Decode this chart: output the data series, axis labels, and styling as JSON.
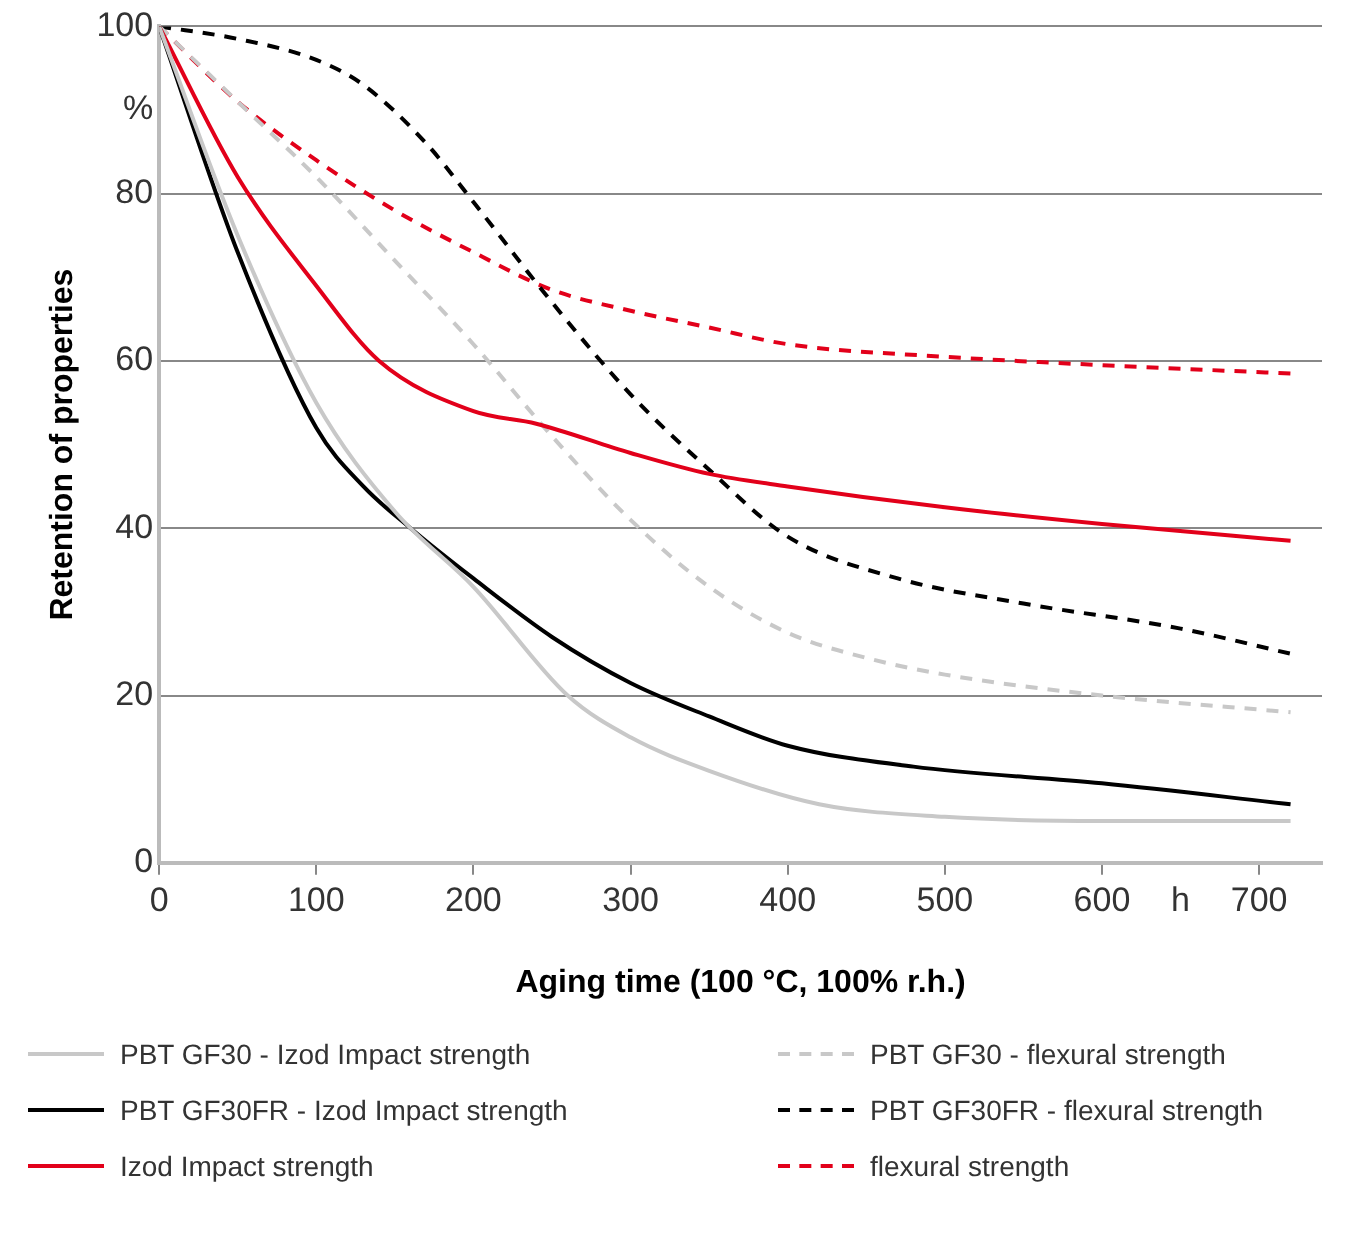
{
  "chart_data": {
    "type": "line",
    "xlabel": "Aging time (100 °C, 100% r.h.)",
    "ylabel": "Retention of properties",
    "xlim": [
      0,
      740
    ],
    "xticks": [
      0,
      100,
      200,
      300,
      400,
      500,
      600,
      {
        "value": 650,
        "label": "h"
      },
      700
    ],
    "ylim": [
      0,
      100
    ],
    "yticks": [
      0,
      20,
      40,
      60,
      80,
      {
        "value": 90,
        "label": "%"
      },
      100
    ],
    "grid": "y",
    "legend": "bottom",
    "marker": "none",
    "series": [
      {
        "name": "PBT GF30 - Izod Impact strength",
        "color": "#c8c8c8",
        "line_style": "solid",
        "x": [
          0,
          50,
          100,
          150,
          200,
          260,
          300,
          350,
          420,
          500,
          600,
          720
        ],
        "values": [
          100,
          75,
          55,
          42,
          33,
          20,
          15,
          11,
          7,
          5.5,
          5,
          5
        ]
      },
      {
        "name": "PBT GF30FR - Izod Impact strength",
        "color": "#000000",
        "line_style": "solid",
        "x": [
          0,
          50,
          100,
          130,
          160,
          200,
          250,
          300,
          350,
          400,
          480,
          600,
          720
        ],
        "values": [
          100,
          73,
          52,
          45,
          40,
          34,
          27,
          21.5,
          17.5,
          14,
          11.5,
          9.5,
          7
        ]
      },
      {
        "name": "Izod Impact strength",
        "color": "#e2001a",
        "line_style": "solid",
        "x": [
          0,
          50,
          100,
          140,
          200,
          240,
          300,
          350,
          400,
          500,
          600,
          720
        ],
        "values": [
          100,
          82,
          69,
          60,
          54,
          52.5,
          49,
          46.5,
          45,
          42.5,
          40.5,
          38.5
        ]
      },
      {
        "name": "PBT GF30 - flexural strength",
        "color": "#c8c8c8",
        "line_style": "dashed",
        "x": [
          0,
          50,
          100,
          150,
          200,
          250,
          300,
          350,
          400,
          450,
          500,
          600,
          720
        ],
        "values": [
          100,
          91,
          82,
          72,
          62,
          51,
          41,
          33,
          27.5,
          24.5,
          22.5,
          20,
          18
        ]
      },
      {
        "name": "PBT GF30FR - flexural strength",
        "color": "#000000",
        "line_style": "dashed",
        "x": [
          0,
          50,
          100,
          130,
          170,
          200,
          250,
          300,
          350,
          400,
          470,
          550,
          650,
          720
        ],
        "values": [
          100,
          98.5,
          96,
          93,
          86,
          79,
          67,
          56,
          47,
          39,
          34,
          31,
          28,
          25
        ]
      },
      {
        "name": "flexural strength",
        "color": "#e2001a",
        "line_style": "dashed",
        "x": [
          0,
          50,
          100,
          150,
          200,
          250,
          300,
          350,
          400,
          500,
          600,
          720
        ],
        "values": [
          100,
          91,
          84,
          78,
          73,
          68.5,
          66,
          64,
          62,
          60.5,
          59.5,
          58.5
        ]
      }
    ]
  }
}
